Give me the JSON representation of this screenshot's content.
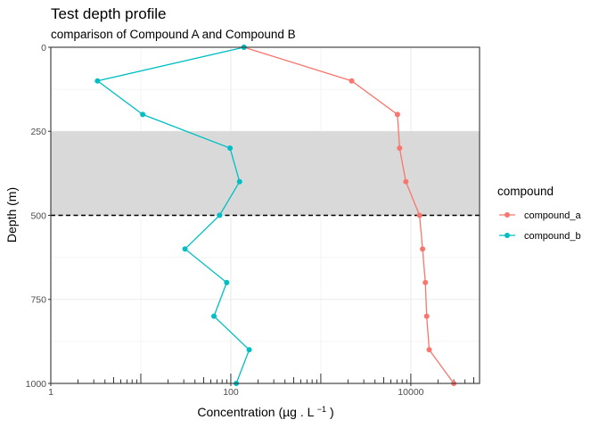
{
  "chart_data": {
    "type": "line",
    "title": "Test depth profile",
    "subtitle": "comparison of Compound A and Compound B",
    "xlabel": "Concentration",
    "xlabel_unit": "(µg . L",
    "xlabel_exp": "−1",
    "xlabel_close": ")",
    "ylabel": "Depth (m)",
    "x_scale": "log10",
    "xlim": [
      1,
      58000
    ],
    "ylim": [
      0,
      1000
    ],
    "y_reversed": true,
    "x_ticks": [
      1,
      100,
      10000
    ],
    "x_tick_labels": [
      "1",
      "100",
      "10000"
    ],
    "y_ticks": [
      0,
      250,
      500,
      750,
      1000
    ],
    "y_tick_labels": [
      "0",
      "250",
      "500",
      "750",
      "1000"
    ],
    "shaded_band": {
      "from": 250,
      "to": 500,
      "color": "#d9d9d9"
    },
    "reference_line": {
      "depth": 500,
      "style": "dashed",
      "color": "#000000"
    },
    "rug": "bottom",
    "legend": {
      "title": "compound",
      "position": "right"
    },
    "series": [
      {
        "name": "compound_a",
        "color": "#F8766D",
        "points": [
          {
            "depth": 0,
            "conc": 140
          },
          {
            "depth": 100,
            "conc": 2200
          },
          {
            "depth": 200,
            "conc": 7100
          },
          {
            "depth": 300,
            "conc": 7500
          },
          {
            "depth": 400,
            "conc": 8800
          },
          {
            "depth": 500,
            "conc": 12500
          },
          {
            "depth": 600,
            "conc": 13500
          },
          {
            "depth": 700,
            "conc": 14500
          },
          {
            "depth": 800,
            "conc": 15000
          },
          {
            "depth": 900,
            "conc": 16000
          },
          {
            "depth": 1000,
            "conc": 30000
          }
        ]
      },
      {
        "name": "compound_b",
        "color": "#00BFC4",
        "points": [
          {
            "depth": 0,
            "conc": 140
          },
          {
            "depth": 100,
            "conc": 3.3
          },
          {
            "depth": 200,
            "conc": 10.5
          },
          {
            "depth": 300,
            "conc": 98
          },
          {
            "depth": 400,
            "conc": 125
          },
          {
            "depth": 500,
            "conc": 75
          },
          {
            "depth": 600,
            "conc": 31
          },
          {
            "depth": 700,
            "conc": 90
          },
          {
            "depth": 800,
            "conc": 65
          },
          {
            "depth": 900,
            "conc": 160
          },
          {
            "depth": 1000,
            "conc": 115
          }
        ]
      }
    ]
  }
}
